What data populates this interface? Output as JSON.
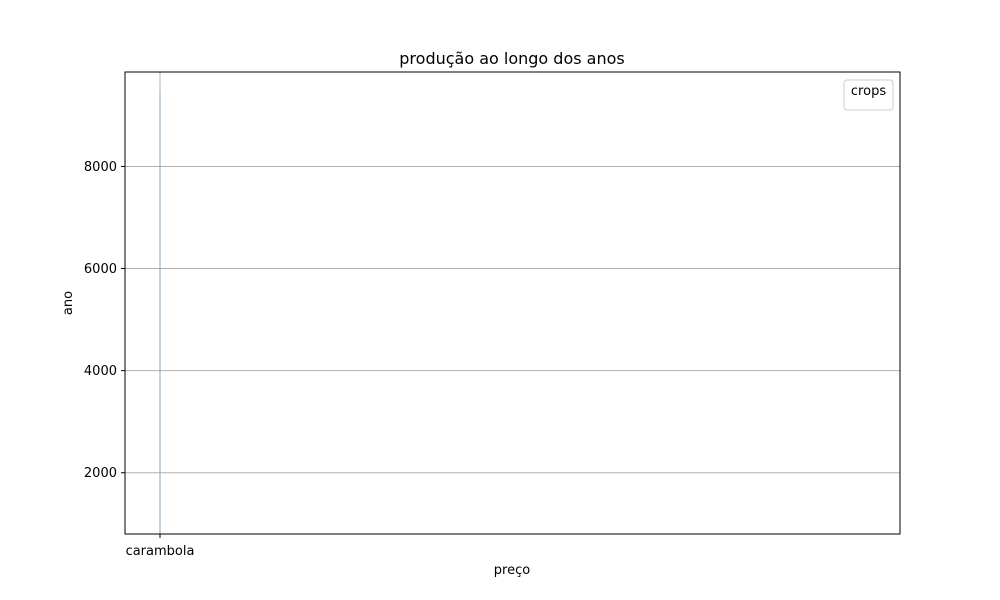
{
  "chart_data": {
    "type": "bar",
    "title": "produção ao longo dos anos",
    "xlabel": "preço",
    "ylabel": "ano",
    "categories": [
      "carambola"
    ],
    "series": [
      {
        "values": [
          9450
        ]
      }
    ],
    "y_ticks": [
      2000,
      4000,
      6000,
      8000
    ],
    "ylim": [
      800,
      9850
    ],
    "grid": true,
    "legend": {
      "title": "crops",
      "placement": "top-right",
      "entries": []
    }
  }
}
